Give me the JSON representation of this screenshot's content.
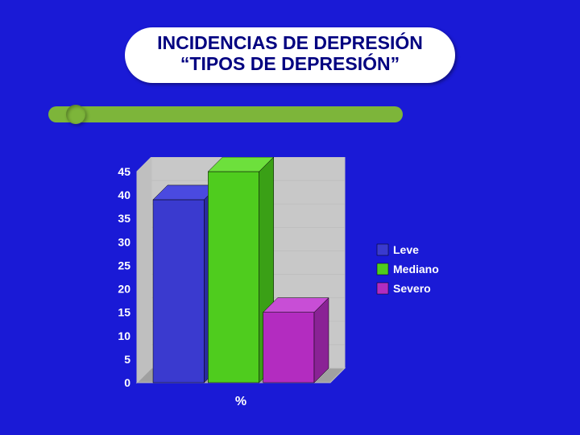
{
  "slide": {
    "background_color": "#1a1ad6",
    "accent_color": "#7db53a",
    "title_color": "#000080",
    "title_fontsize": 23,
    "title_line1": "INCIDENCIAS DE DEPRESIÓN",
    "title_line2": "“TIPOS DE DEPRESIÓN”"
  },
  "chart": {
    "type": "bar",
    "categories": [
      "%"
    ],
    "series": [
      {
        "label": "Leve",
        "value": 39,
        "bar_color": "#3a3acf",
        "side_color": "#2a2a9f",
        "top_color": "#4a4ae0"
      },
      {
        "label": "Mediano",
        "value": 45,
        "bar_color": "#4fcc1e",
        "side_color": "#3aa016",
        "top_color": "#6de03c"
      },
      {
        "label": "Severo",
        "value": 15,
        "bar_color": "#b32cc0",
        "side_color": "#8a2295",
        "top_color": "#c84ed6"
      }
    ],
    "x_category_label": "%",
    "ylim": [
      0,
      45
    ],
    "ytick_step": 5,
    "yticks": [
      45,
      40,
      35,
      30,
      25,
      20,
      15,
      10,
      5,
      0
    ],
    "axis_text_color": "#ffffff",
    "axis_fontsize": 14,
    "gridline_color": "#bfbfbf",
    "plot_back_color": "#bfbfbf",
    "plot_floor_color": "#a0a0a0",
    "plot_wall_color": "#c8c8c8",
    "legend_text_color": "#ffffff",
    "legend_fontsize": 14,
    "depth_offset_x": 18,
    "depth_offset_y": -18
  }
}
